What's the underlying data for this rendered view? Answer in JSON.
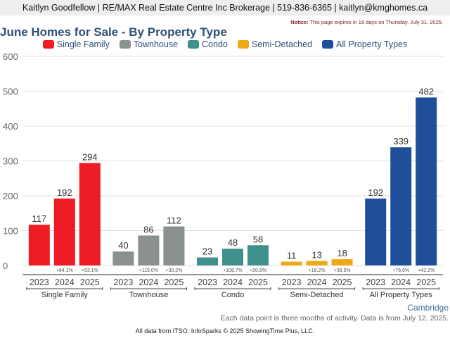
{
  "header": {
    "contact": "Kaitlyn Goodfellow | RE/MAX Real Estate Centre Inc Brokerage | 519-836-6365 | kaitlyn@kmghomes.ca",
    "notice_label": "Notice:",
    "notice_text": "This page expires in 18 days on Thursday, July 31, 2025."
  },
  "footer": {
    "place": "Cambridge",
    "note": "Each data point is three months of activity. Data is from July 12, 2025.",
    "source": "All data from ITSO. InfoSparks © 2025 ShowingTime Plus, LLC."
  },
  "chart_data": {
    "type": "bar",
    "title": "June Homes for Sale - By Property Type",
    "xlabel": "",
    "ylabel": "",
    "ylim": [
      0,
      600
    ],
    "yticks": [
      0,
      100,
      200,
      300,
      400,
      500,
      600
    ],
    "grid": true,
    "legend_position": "top-center",
    "years": [
      "2023",
      "2024",
      "2025"
    ],
    "groups": [
      {
        "name": "Single Family",
        "color": "#ed1c24",
        "values": [
          117,
          192,
          294
        ],
        "changes": [
          "",
          "+64.1%",
          "+53.1%"
        ]
      },
      {
        "name": "Townhouse",
        "color": "#8a918f",
        "values": [
          40,
          86,
          112
        ],
        "changes": [
          "",
          "+115.0%",
          "+30.2%"
        ]
      },
      {
        "name": "Condo",
        "color": "#3f8f8c",
        "values": [
          23,
          48,
          58
        ],
        "changes": [
          "",
          "+108.7%",
          "+20.8%"
        ]
      },
      {
        "name": "Semi-Detached",
        "color": "#eeaa16",
        "values": [
          11,
          13,
          18
        ],
        "changes": [
          "",
          "+18.2%",
          "+38.5%"
        ]
      },
      {
        "name": "All Property Types",
        "color": "#1f4e9b",
        "values": [
          192,
          339,
          482
        ],
        "changes": [
          "",
          "+76.6%",
          "+42.2%"
        ]
      }
    ]
  }
}
